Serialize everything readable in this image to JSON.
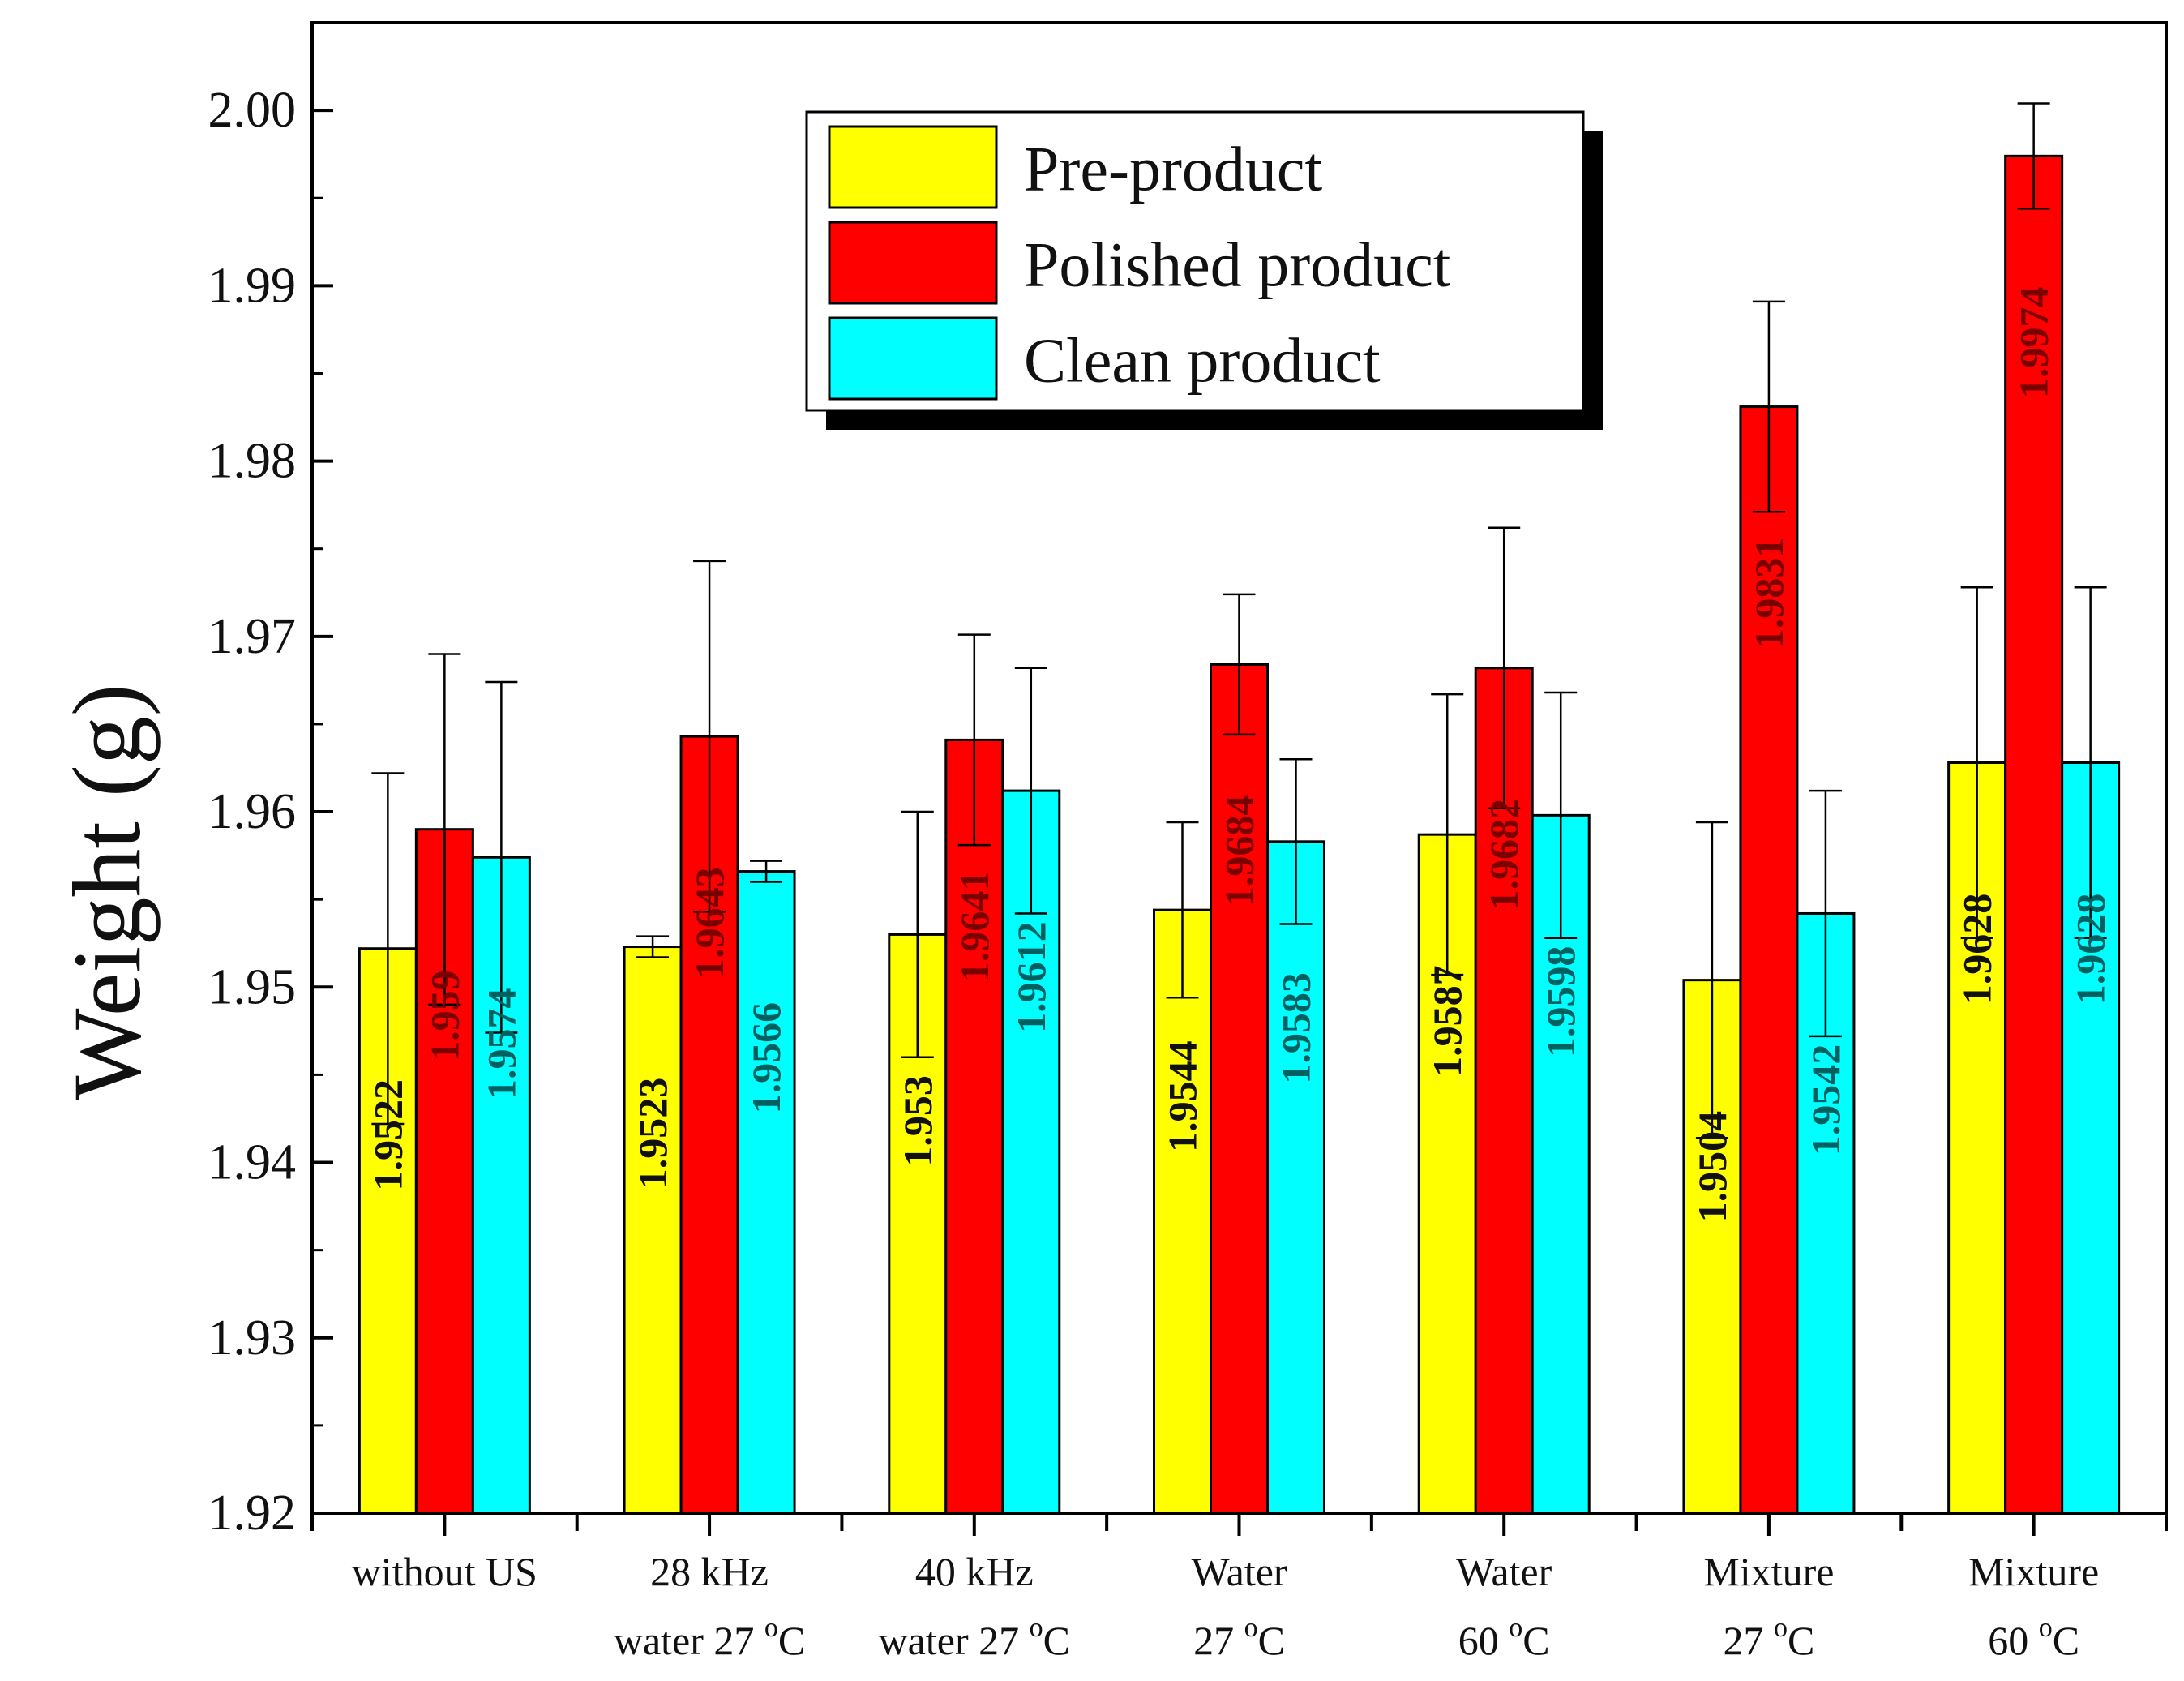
{
  "chart_data": {
    "type": "bar",
    "title": "",
    "xlabel": "",
    "ylabel": "Weight (g)",
    "ylim": [
      1.92,
      2.005
    ],
    "yticks": [
      "1.92",
      "1.93",
      "1.94",
      "1.95",
      "1.96",
      "1.97",
      "1.98",
      "1.99",
      "2.00"
    ],
    "grid": false,
    "legend_position": "top-center",
    "categories": [
      {
        "line1": "without US",
        "line2": "",
        "sup": "",
        "line2_tail": ""
      },
      {
        "line1": "28 kHz",
        "line2": "water 27 ",
        "sup": "o",
        "line2_tail": "C"
      },
      {
        "line1": "40 kHz",
        "line2": "water 27 ",
        "sup": "o",
        "line2_tail": "C"
      },
      {
        "line1": "Water",
        "line2": "27 ",
        "sup": "o",
        "line2_tail": "C"
      },
      {
        "line1": "Water",
        "line2": "60 ",
        "sup": "o",
        "line2_tail": "C"
      },
      {
        "line1": "Mixture",
        "line2": "27 ",
        "sup": "o",
        "line2_tail": "C"
      },
      {
        "line1": "Mixture",
        "line2": "60 ",
        "sup": "o",
        "line2_tail": "C"
      }
    ],
    "series": [
      {
        "name": "Pre-product",
        "color": "#ffff00",
        "values": [
          1.9522,
          1.9523,
          1.953,
          1.9544,
          1.9587,
          1.9504,
          1.9628
        ],
        "labels": [
          "1.9522",
          "1.9523",
          "1.953",
          "1.9544",
          "1.9587",
          "1.9504",
          "1.9628"
        ],
        "label_color": "#111111",
        "errors": [
          0.01,
          0.0006,
          0.007,
          0.005,
          0.008,
          0.009,
          0.01
        ]
      },
      {
        "name": "Polished product",
        "color": "#ff0000",
        "values": [
          1.959,
          1.9643,
          1.9641,
          1.9684,
          1.9682,
          1.9831,
          1.9974
        ],
        "labels": [
          "1.959",
          "1.9643",
          "1.9641",
          "1.9684",
          "1.9682",
          "1.9831",
          "1.9974"
        ],
        "label_color": "#7a0000",
        "errors": [
          0.01,
          0.01,
          0.006,
          0.004,
          0.008,
          0.006,
          0.003
        ]
      },
      {
        "name": "Clean product",
        "color": "#00ffff",
        "values": [
          1.9574,
          1.9566,
          1.9612,
          1.9583,
          1.9598,
          1.9542,
          1.9628
        ],
        "labels": [
          "1.9574",
          "1.9566",
          "1.9612",
          "1.9583",
          "1.9598",
          "1.9542",
          "1.9628"
        ],
        "label_color": "#006060",
        "errors": [
          0.01,
          0.0006,
          0.007,
          0.0047,
          0.007,
          0.007,
          0.01
        ]
      }
    ]
  }
}
